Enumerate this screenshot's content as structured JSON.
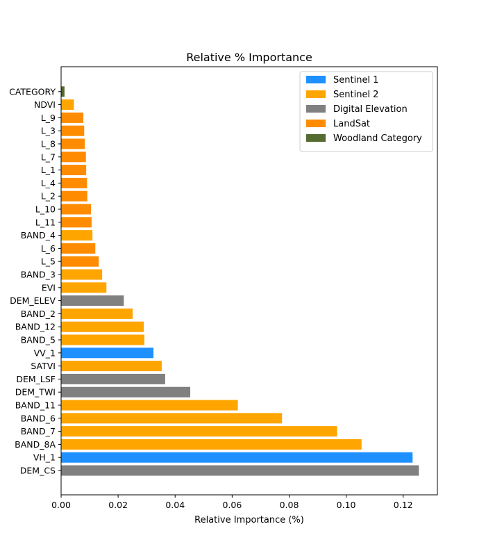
{
  "chart_data": {
    "type": "bar",
    "orientation": "horizontal",
    "title": "Relative % Importance",
    "xlabel": "Relative Importance (%)",
    "ylabel": "",
    "xlim": [
      0,
      0.132
    ],
    "xticks": [
      "0.00",
      "0.02",
      "0.04",
      "0.06",
      "0.08",
      "0.10",
      "0.12"
    ],
    "legend_position": "top-right",
    "grid": false,
    "groups": [
      {
        "name": "Sentinel 1",
        "color": "#1e90ff"
      },
      {
        "name": "Sentinel 2",
        "color": "#ffa500"
      },
      {
        "name": "Digital Elevation",
        "color": "#808080"
      },
      {
        "name": "LandSat",
        "color": "#ff8c00"
      },
      {
        "name": "Woodland Category",
        "color": "#556b2f"
      }
    ],
    "bars": [
      {
        "label": "DEM_CS",
        "value": 0.1255,
        "group": "Digital Elevation"
      },
      {
        "label": "VH_1",
        "value": 0.1233,
        "group": "Sentinel 1"
      },
      {
        "label": "BAND_8A",
        "value": 0.1054,
        "group": "Sentinel 2"
      },
      {
        "label": "BAND_7",
        "value": 0.0968,
        "group": "Sentinel 2"
      },
      {
        "label": "BAND_6",
        "value": 0.0775,
        "group": "Sentinel 2"
      },
      {
        "label": "BAND_11",
        "value": 0.062,
        "group": "Sentinel 2"
      },
      {
        "label": "DEM_TWI",
        "value": 0.0453,
        "group": "Digital Elevation"
      },
      {
        "label": "DEM_LSF",
        "value": 0.0365,
        "group": "Digital Elevation"
      },
      {
        "label": "SATVI",
        "value": 0.0353,
        "group": "Sentinel 2"
      },
      {
        "label": "VV_1",
        "value": 0.0324,
        "group": "Sentinel 1"
      },
      {
        "label": "BAND_5",
        "value": 0.0292,
        "group": "Sentinel 2"
      },
      {
        "label": "BAND_12",
        "value": 0.029,
        "group": "Sentinel 2"
      },
      {
        "label": "BAND_2",
        "value": 0.0251,
        "group": "Sentinel 2"
      },
      {
        "label": "DEM_ELEV",
        "value": 0.022,
        "group": "Digital Elevation"
      },
      {
        "label": "EVI",
        "value": 0.0159,
        "group": "Sentinel 2"
      },
      {
        "label": "BAND_3",
        "value": 0.0144,
        "group": "Sentinel 2"
      },
      {
        "label": "L_5",
        "value": 0.0132,
        "group": "LandSat"
      },
      {
        "label": "L_6",
        "value": 0.012,
        "group": "LandSat"
      },
      {
        "label": "BAND_4",
        "value": 0.011,
        "group": "Sentinel 2"
      },
      {
        "label": "L_11",
        "value": 0.0107,
        "group": "LandSat"
      },
      {
        "label": "L_10",
        "value": 0.0105,
        "group": "LandSat"
      },
      {
        "label": "L_2",
        "value": 0.0092,
        "group": "LandSat"
      },
      {
        "label": "L_4",
        "value": 0.0091,
        "group": "LandSat"
      },
      {
        "label": "L_1",
        "value": 0.0088,
        "group": "LandSat"
      },
      {
        "label": "L_7",
        "value": 0.0087,
        "group": "LandSat"
      },
      {
        "label": "L_8",
        "value": 0.0083,
        "group": "LandSat"
      },
      {
        "label": "L_3",
        "value": 0.0081,
        "group": "LandSat"
      },
      {
        "label": "L_9",
        "value": 0.0078,
        "group": "LandSat"
      },
      {
        "label": "NDVI",
        "value": 0.0045,
        "group": "Sentinel 2"
      },
      {
        "label": "CATEGORY",
        "value": 0.0012,
        "group": "Woodland Category"
      }
    ]
  }
}
